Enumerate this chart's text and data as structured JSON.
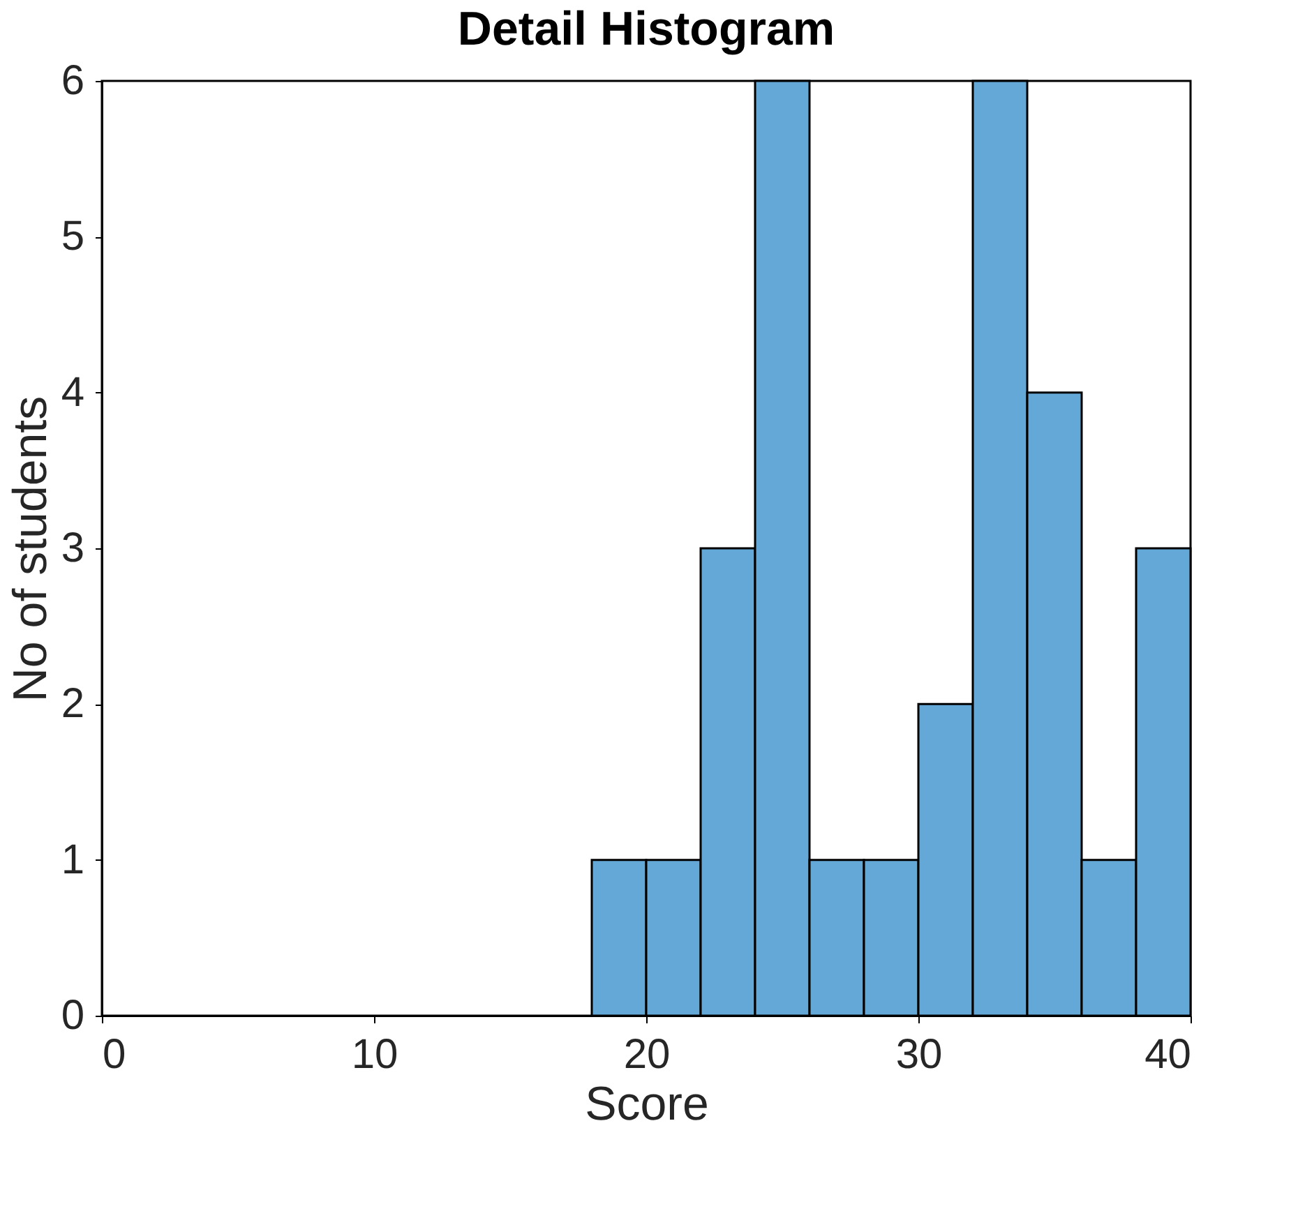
{
  "chart_data": {
    "type": "histogram",
    "title": "Detail Histogram",
    "xlabel": "Score",
    "ylabel": "No of students",
    "bins": [
      18,
      20,
      22,
      24,
      26,
      28,
      30,
      32,
      34,
      36,
      38,
      40
    ],
    "values": [
      1,
      1,
      3,
      6,
      1,
      1,
      2,
      6,
      4,
      1,
      3
    ],
    "color": "#64a8d7",
    "xlim": [
      0,
      40
    ],
    "xticks": [
      0,
      10,
      20,
      30,
      40
    ],
    "ylim": [
      0,
      6
    ],
    "yticks": [
      0,
      1,
      2,
      3,
      4,
      5,
      6
    ],
    "grid": false
  }
}
